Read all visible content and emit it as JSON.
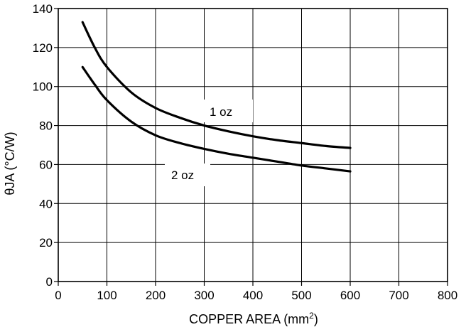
{
  "chart_data": {
    "type": "line",
    "title": "",
    "xlabel": "COPPER AREA (mm",
    "xlabel_sup": "2",
    "xlabel_close": ")",
    "ylabel": "θJA (°C/W)",
    "xlim": [
      0,
      800
    ],
    "ylim": [
      0,
      140
    ],
    "xticks": [
      0,
      100,
      200,
      300,
      400,
      500,
      600,
      700,
      800
    ],
    "yticks": [
      0,
      20,
      40,
      60,
      80,
      100,
      120,
      140
    ],
    "xtick_labels": [
      "0",
      "100",
      "200",
      "300",
      "400",
      "500",
      "600",
      "700",
      "800"
    ],
    "ytick_labels": [
      "0",
      "20",
      "40",
      "60",
      "80",
      "100",
      "120",
      "140"
    ],
    "grid": true,
    "legend": "none",
    "line_color": "#000000",
    "series": [
      {
        "name": "1 oz",
        "x": [
          50,
          75,
          100,
          150,
          200,
          250,
          300,
          350,
          400,
          450,
          500,
          550,
          600
        ],
        "y": [
          133,
          120,
          110,
          97,
          89,
          84,
          80,
          77,
          74.5,
          72.5,
          71,
          69.5,
          68.5
        ]
      },
      {
        "name": "2 oz",
        "x": [
          50,
          75,
          100,
          150,
          200,
          250,
          300,
          350,
          400,
          450,
          500,
          550,
          600
        ],
        "y": [
          110,
          101,
          93,
          82,
          75,
          71,
          68,
          65.5,
          63.5,
          61.5,
          59.5,
          58,
          56.5
        ]
      }
    ]
  }
}
